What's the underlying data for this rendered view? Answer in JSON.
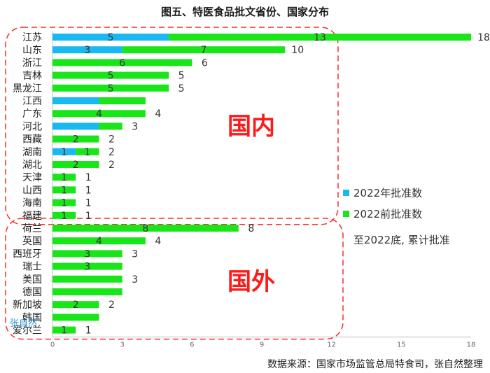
{
  "colors": {
    "blue": "#1ab8f0",
    "green": "#19e619",
    "region_border": "#ff2a2a"
  },
  "chart_data": {
    "type": "bar",
    "orientation": "horizontal",
    "stacked": true,
    "title": "图五、特医食品批文省份、国家分布",
    "categories": [
      "江苏",
      "山东",
      "浙江",
      "吉林",
      "黑龙江",
      "江西",
      "广东",
      "河北",
      "西藏",
      "湖南",
      "湖北",
      "天津",
      "山西",
      "海南",
      "福建",
      "荷兰",
      "英国",
      "西班牙",
      "瑞士",
      "美国",
      "德国",
      "新加坡",
      "韩国",
      "爱尔兰"
    ],
    "series": [
      {
        "name": "2022年批准数",
        "color": "#1ab8f0",
        "values": [
          5,
          3,
          0,
          0,
          0,
          2,
          0,
          2,
          0,
          1,
          0,
          0,
          0,
          0,
          0,
          0,
          0,
          0,
          0,
          0,
          0,
          0,
          0,
          0
        ]
      },
      {
        "name": "2022前批准数",
        "color": "#19e619",
        "values": [
          13,
          7,
          6,
          5,
          5,
          2,
          4,
          1,
          2,
          1,
          2,
          1,
          1,
          1,
          1,
          8,
          4,
          3,
          3,
          3,
          3,
          2,
          2,
          1
        ]
      }
    ],
    "segment_labels": {
      "2022年批准数": [
        "5",
        "3",
        "",
        "",
        "",
        "",
        "",
        "",
        "",
        "1",
        "",
        "",
        "",
        "",
        "",
        "",
        "",
        "",
        "",
        "",
        "",
        "",
        "",
        ""
      ],
      "2022前批准数": [
        "13",
        "7",
        "6",
        "5",
        "5",
        "",
        "4",
        "",
        "2",
        "1",
        "2",
        "1",
        "1",
        "1",
        "1",
        "8",
        "4",
        "3",
        "3",
        "",
        "",
        "2",
        "",
        "1"
      ]
    },
    "total_labels": [
      "18",
      "10",
      "6",
      "5",
      "5",
      "",
      "4",
      "3",
      "2",
      "2",
      "2",
      "1",
      "1",
      "1",
      "1",
      "8",
      "4",
      "3",
      "",
      "3",
      "",
      "2",
      "",
      "1"
    ],
    "xlim": [
      0,
      18
    ],
    "xticks": [
      "0",
      "3",
      "6",
      "9",
      "12",
      "15",
      "18"
    ],
    "legend_extra": "至2022底, 累计批准",
    "legend_position": "right",
    "groups": [
      {
        "label": "国内",
        "first": 0,
        "last": 14
      },
      {
        "label": "国外",
        "first": 15,
        "last": 23
      }
    ],
    "source": "数据来源：国家市场监管总局特食司，张自然整理",
    "watermark": "张自然"
  }
}
